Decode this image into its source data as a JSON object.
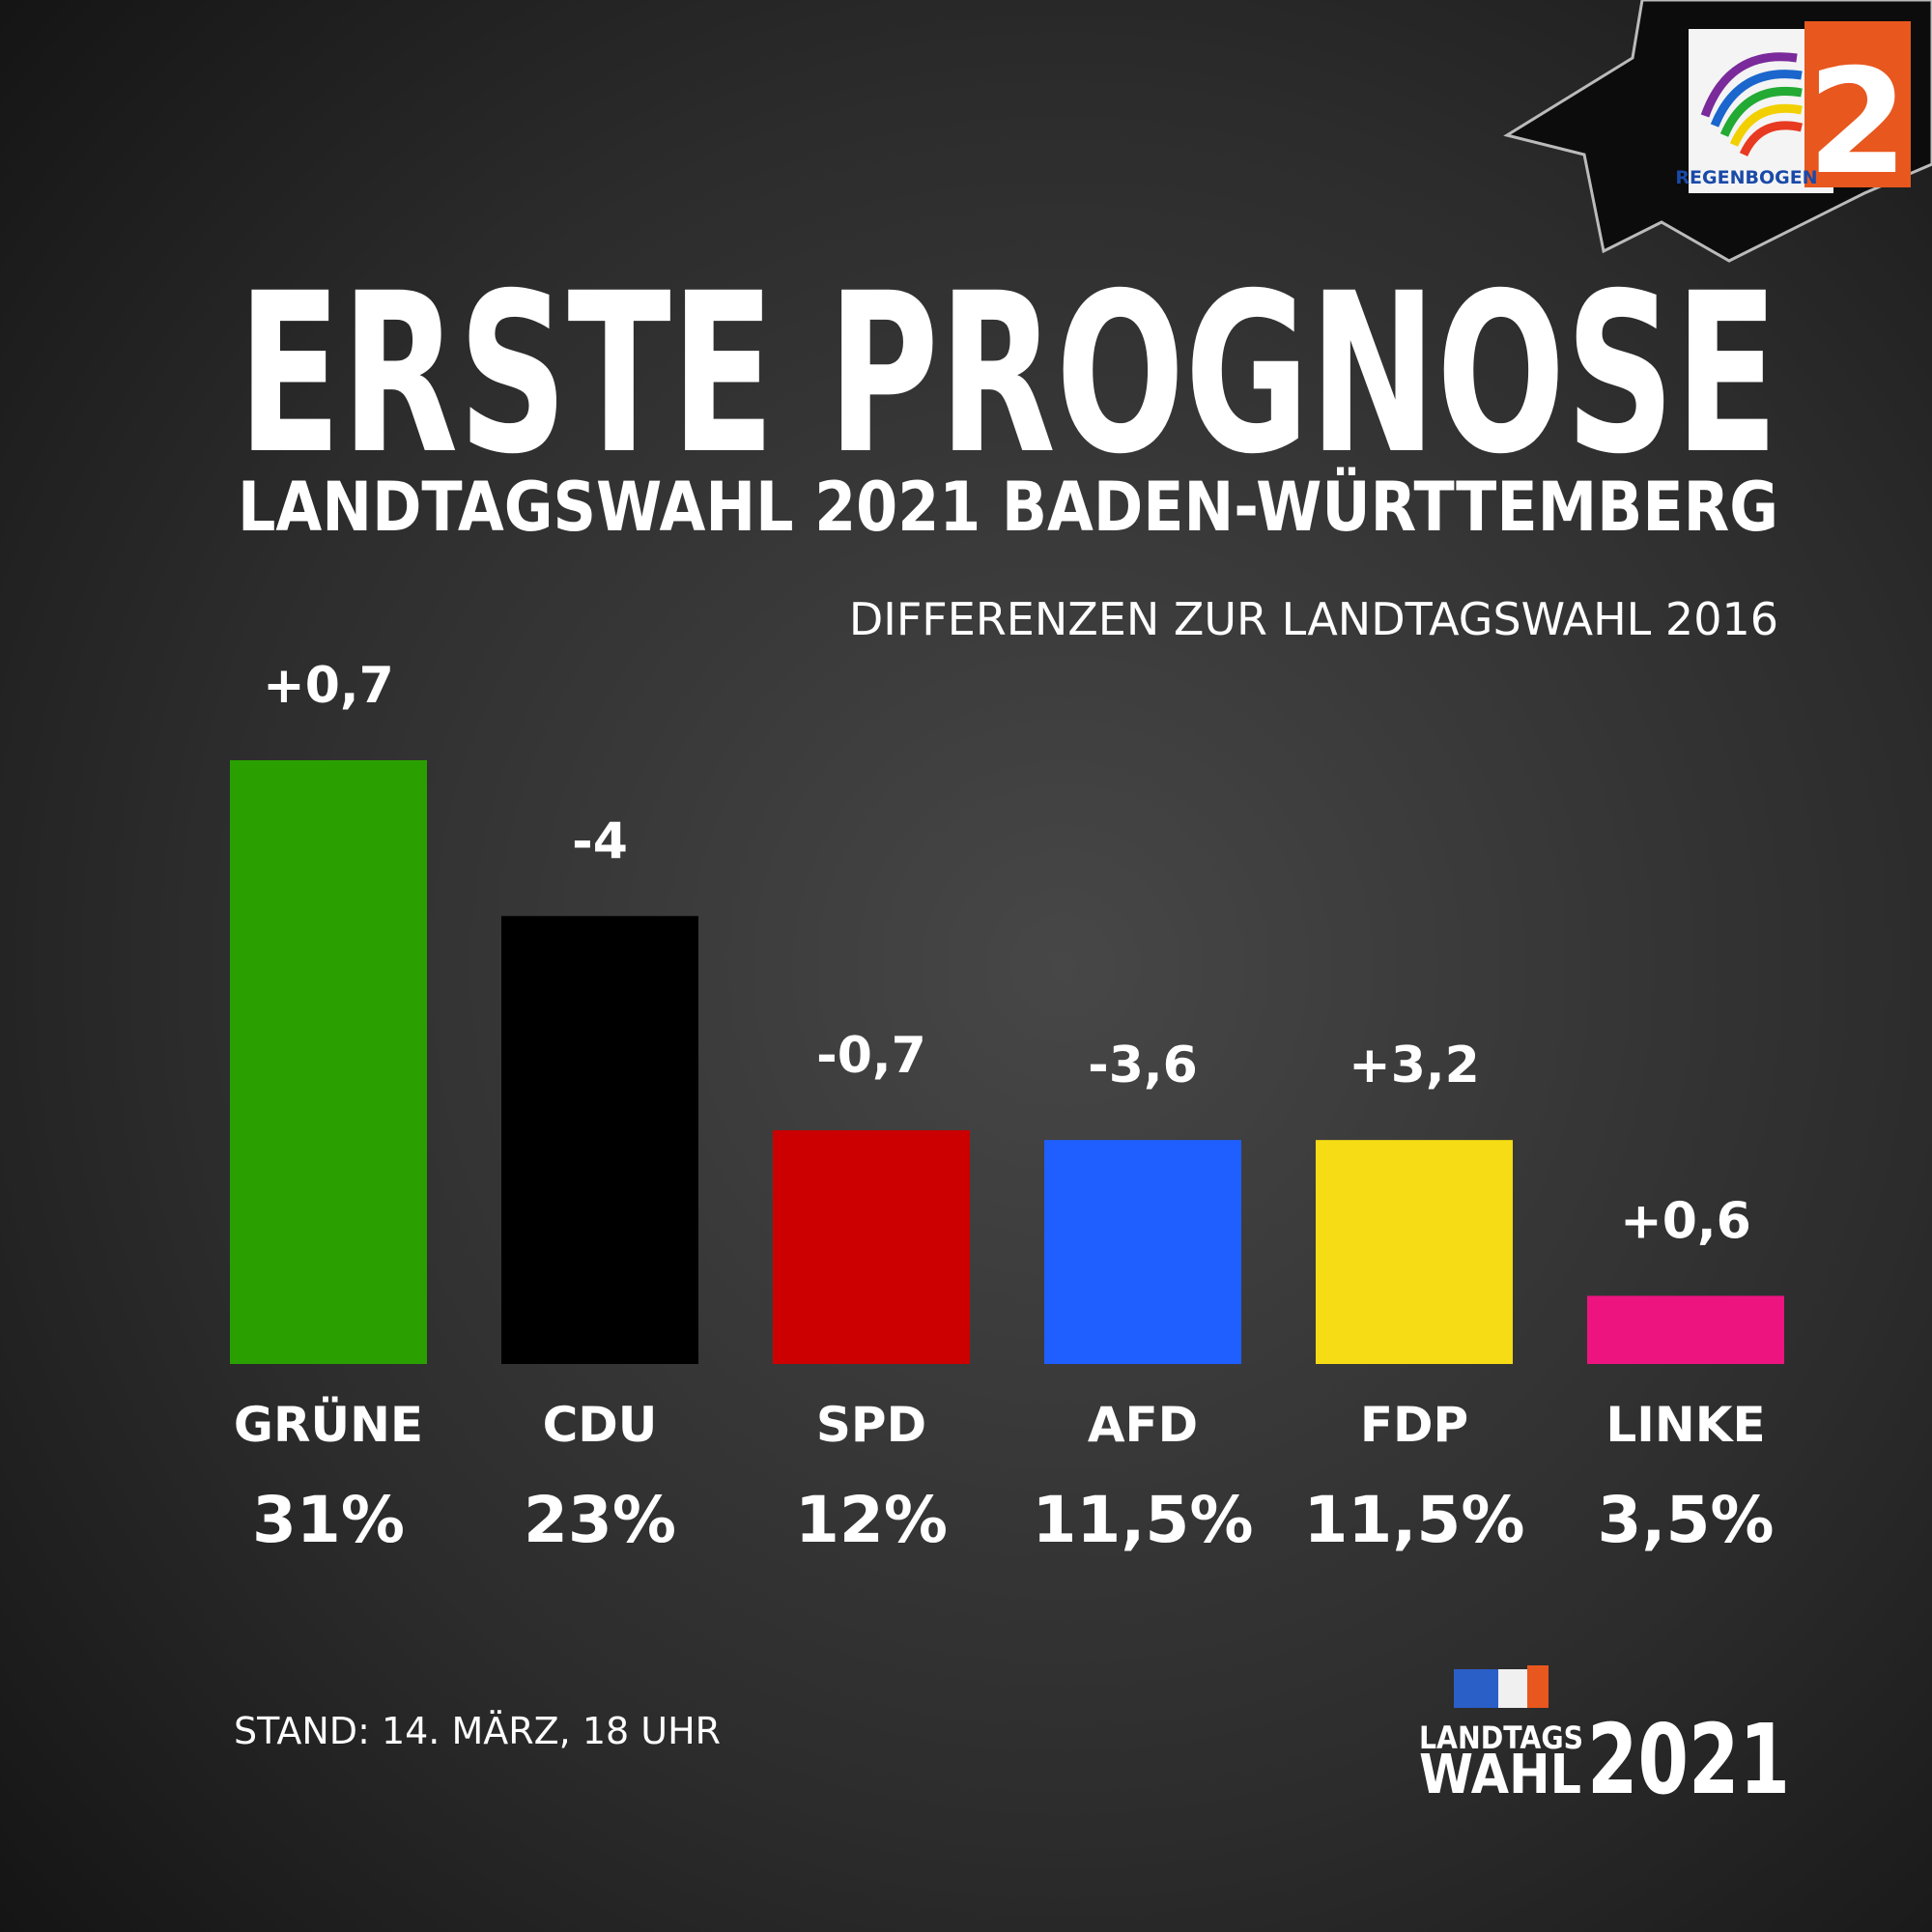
{
  "chart_data": {
    "type": "bar",
    "title": "ERSTE PROGNOSE",
    "subtitle": "LANDTAGSWAHL 2021 BADEN-WÜRTTEMBERG",
    "annotation": "DIFFERENZEN ZUR LANDTAGSWAHL 2016",
    "categories": [
      "GRÜNE",
      "CDU",
      "SPD",
      "AFD",
      "FDP",
      "LINKE"
    ],
    "values": [
      31,
      23,
      12,
      11.5,
      11.5,
      3.5
    ],
    "value_labels": [
      "31%",
      "23%",
      "12%",
      "11,5%",
      "11,5%",
      "3,5%"
    ],
    "colors": [
      "#2aa000",
      "#000000",
      "#cc0000",
      "#1f5fff",
      "#f5dc14",
      "#ee1480"
    ],
    "differences": [
      "+0,7",
      "-4",
      "-0,7",
      "-3,6",
      "+3,2",
      "+0,6"
    ]
  },
  "footer": {
    "stand": "STAND: 14. MÄRZ, 18 UHR",
    "logo_line1": "LANDTAGS",
    "logo_line2": "WAHL",
    "logo_year": "2021"
  },
  "brand": {
    "name": "REGENBOGEN",
    "number": "2"
  }
}
